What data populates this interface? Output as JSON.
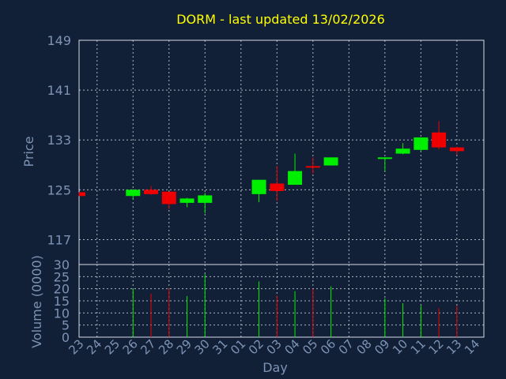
{
  "title": "DORM - last updated 13/02/2026",
  "colors": {
    "background": "#112036",
    "up": "#00ee00",
    "down": "#ee0000",
    "title": "#ffff00",
    "text": "#7d93b5",
    "grid": "#e0e6ee"
  },
  "chart_data": [
    {
      "type": "candlestick",
      "ylabel": "Price",
      "ylim": [
        113,
        149
      ],
      "yticks": [
        149,
        141,
        133,
        125,
        117
      ],
      "grid": true,
      "categories": [
        "23",
        "24",
        "25",
        "26",
        "27",
        "28",
        "29",
        "30",
        "31",
        "01",
        "02",
        "03",
        "04",
        "05",
        "06",
        "07",
        "08",
        "09",
        "10",
        "11",
        "12",
        "13",
        "14"
      ],
      "candles": [
        {
          "x": "23",
          "open": 124.6,
          "close": 124.0,
          "high": 124.6,
          "low": 124.0
        },
        {
          "x": "26",
          "open": 124.0,
          "close": 125.0,
          "high": 125.1,
          "low": 123.5
        },
        {
          "x": "27",
          "open": 125.0,
          "close": 124.3,
          "high": 125.6,
          "low": 124.2
        },
        {
          "x": "28",
          "open": 124.7,
          "close": 122.7,
          "high": 124.7,
          "low": 121.9
        },
        {
          "x": "29",
          "open": 122.9,
          "close": 123.6,
          "high": 123.7,
          "low": 122.2
        },
        {
          "x": "30",
          "open": 122.9,
          "close": 124.1,
          "high": 124.5,
          "low": 121.2
        },
        {
          "x": "02",
          "open": 124.3,
          "close": 126.6,
          "high": 126.6,
          "low": 123.0
        },
        {
          "x": "03",
          "open": 126.0,
          "close": 124.8,
          "high": 128.8,
          "low": 123.2
        },
        {
          "x": "04",
          "open": 125.8,
          "close": 128.0,
          "high": 130.8,
          "low": 125.8
        },
        {
          "x": "05",
          "open": 128.8,
          "close": 128.6,
          "high": 130.2,
          "low": 127.6
        },
        {
          "x": "06",
          "open": 128.9,
          "close": 130.2,
          "high": 130.2,
          "low": 128.9
        },
        {
          "x": "09",
          "open": 130.0,
          "close": 130.2,
          "high": 130.2,
          "low": 128.0
        },
        {
          "x": "10",
          "open": 130.8,
          "close": 131.6,
          "high": 132.5,
          "low": 130.7
        },
        {
          "x": "11",
          "open": 131.4,
          "close": 133.4,
          "high": 133.4,
          "low": 131.2
        },
        {
          "x": "12",
          "open": 134.2,
          "close": 131.8,
          "high": 136.0,
          "low": 131.5
        },
        {
          "x": "13",
          "open": 131.8,
          "close": 131.2,
          "high": 131.9,
          "low": 130.6
        }
      ]
    },
    {
      "type": "bar",
      "ylabel": "Volume (0000)",
      "xlabel": "Day",
      "ylim": [
        0,
        30
      ],
      "yticks": [
        30,
        25,
        20,
        15,
        10,
        5,
        0
      ],
      "grid": true,
      "categories": [
        "23",
        "24",
        "25",
        "26",
        "27",
        "28",
        "29",
        "30",
        "31",
        "01",
        "02",
        "03",
        "04",
        "05",
        "06",
        "07",
        "08",
        "09",
        "10",
        "11",
        "12",
        "13",
        "14"
      ],
      "bars": [
        {
          "x": "26",
          "value": 20,
          "direction": "up"
        },
        {
          "x": "27",
          "value": 18,
          "direction": "down"
        },
        {
          "x": "28",
          "value": 20,
          "direction": "down"
        },
        {
          "x": "29",
          "value": 17,
          "direction": "up"
        },
        {
          "x": "30",
          "value": 26,
          "direction": "up"
        },
        {
          "x": "02",
          "value": 23,
          "direction": "up"
        },
        {
          "x": "03",
          "value": 17,
          "direction": "down"
        },
        {
          "x": "04",
          "value": 19,
          "direction": "up"
        },
        {
          "x": "05",
          "value": 20,
          "direction": "down"
        },
        {
          "x": "06",
          "value": 21,
          "direction": "up"
        },
        {
          "x": "09",
          "value": 16,
          "direction": "up"
        },
        {
          "x": "10",
          "value": 14,
          "direction": "up"
        },
        {
          "x": "11",
          "value": 13,
          "direction": "up"
        },
        {
          "x": "12",
          "value": 12,
          "direction": "down"
        },
        {
          "x": "13",
          "value": 13,
          "direction": "down"
        }
      ]
    }
  ]
}
